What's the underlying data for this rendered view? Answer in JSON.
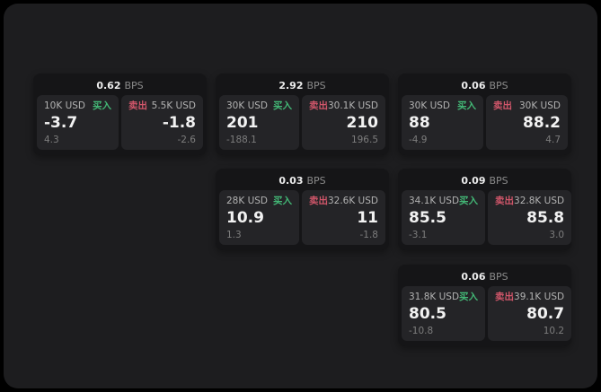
{
  "page": {
    "background_outer": "#000000",
    "background": "#1d1d1f"
  },
  "colors": {
    "card_bg": "#151517",
    "panel_bg": "#242427",
    "buy_green": "#43b876",
    "sell_red": "#d1566a",
    "price_white": "#f2f2f2",
    "muted_gray": "#7d7d7d"
  },
  "labels": {
    "bps": "BPS",
    "buy": "买入",
    "sell": "卖出"
  },
  "cards": [
    {
      "bps": "0.62",
      "left": {
        "amount": "10K USD",
        "price": "-3.7",
        "delta": "4.3"
      },
      "right": {
        "amount": "5.5K USD",
        "price": "-1.8",
        "delta": "-2.6"
      }
    },
    {
      "bps": "2.92",
      "left": {
        "amount": "30K USD",
        "price": "201",
        "delta": "-188.1"
      },
      "right": {
        "amount": "30.1K USD",
        "price": "210",
        "delta": "196.5"
      }
    },
    {
      "bps": "0.06",
      "left": {
        "amount": "30K USD",
        "price": "88",
        "delta": "-4.9"
      },
      "right": {
        "amount": "30K USD",
        "price": "88.2",
        "delta": "4.7"
      }
    },
    {
      "bps": "0.03",
      "left": {
        "amount": "28K USD",
        "price": "10.9",
        "delta": "1.3"
      },
      "right": {
        "amount": "32.6K USD",
        "price": "11",
        "delta": "-1.8"
      }
    },
    {
      "bps": "0.09",
      "left": {
        "amount": "34.1K USD",
        "price": "85.5",
        "delta": "-3.1"
      },
      "right": {
        "amount": "32.8K USD",
        "price": "85.8",
        "delta": "3.0"
      }
    },
    {
      "bps": "0.06",
      "left": {
        "amount": "31.8K USD",
        "price": "80.5",
        "delta": "-10.8"
      },
      "right": {
        "amount": "39.1K USD",
        "price": "80.7",
        "delta": "10.2"
      }
    }
  ]
}
